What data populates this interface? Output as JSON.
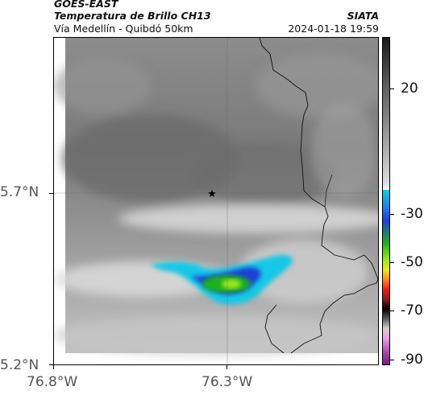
{
  "header": {
    "satellite": "GOES-EAST",
    "product": "Temperatura de Brillo CH13",
    "region": "Vía Medellín - Quibdó 50km",
    "agency": "SIATA",
    "timestamp": "2024-01-18 19:59"
  },
  "map": {
    "lat_labels": [
      "5.7°N",
      "5.2°N"
    ],
    "lon_labels": [
      "76.8°W",
      "76.3°W"
    ],
    "marker_icon": "star-icon",
    "cloud_colors": {
      "background_gray": "#8a8a8a",
      "dark_gray": "#6f6f6f",
      "light_band": "#d8d8d8",
      "cyan": "#19c8e6",
      "blue": "#1f3fd4",
      "green": "#1fb21f",
      "lime": "#9be61f"
    }
  },
  "colorbar": {
    "labels": [
      "20",
      "-30",
      "-50",
      "-70",
      "-90"
    ]
  }
}
